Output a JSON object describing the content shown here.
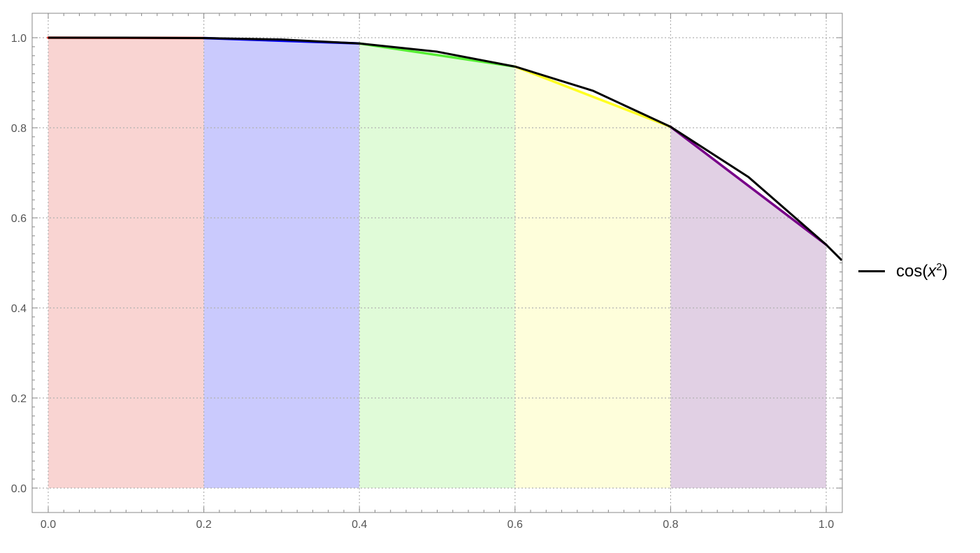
{
  "chart_data": {
    "type": "area",
    "title": "",
    "xlabel": "",
    "ylabel": "",
    "xlim": [
      0,
      1
    ],
    "ylim": [
      0,
      1
    ],
    "x_ticks": [
      "0.0",
      "0.2",
      "0.4",
      "0.6",
      "0.8",
      "1.0"
    ],
    "y_ticks": [
      "0.0",
      "0.2",
      "0.4",
      "0.6",
      "0.8",
      "1.0"
    ],
    "grid": true,
    "grid_style": "dotted",
    "legend": {
      "placement": "right",
      "entries": [
        {
          "label_base": "cos(",
          "label_var": "x",
          "label_exp": "2",
          "label_close": ")",
          "color": "#000000"
        }
      ]
    },
    "curve": {
      "name": "cos(x²)",
      "color": "#000000",
      "x": [
        0.0,
        0.1,
        0.2,
        0.3,
        0.4,
        0.5,
        0.6,
        0.7,
        0.8,
        0.9,
        1.0,
        1.02
      ],
      "y": [
        1.0,
        0.99995,
        0.9992,
        0.99595,
        0.98723,
        0.96891,
        0.9359,
        0.88233,
        0.8021,
        0.69077,
        0.5403,
        0.5058
      ]
    },
    "trapezoids": [
      {
        "x0": 0.0,
        "x1": 0.2,
        "y0": 1.0,
        "y1": 0.9992,
        "edge_color": "#e8261c",
        "fill_color": "#f9d4d2"
      },
      {
        "x0": 0.2,
        "x1": 0.4,
        "y0": 0.9992,
        "y1": 0.98723,
        "edge_color": "#0000ee",
        "fill_color": "#cacafd"
      },
      {
        "x0": 0.4,
        "x1": 0.6,
        "y0": 0.98723,
        "y1": 0.9359,
        "edge_color": "#55ee33",
        "fill_color": "#e0fbd8"
      },
      {
        "x0": 0.6,
        "x1": 0.8,
        "y0": 0.9359,
        "y1": 0.8021,
        "edge_color": "#ffff22",
        "fill_color": "#fefedb"
      },
      {
        "x0": 0.8,
        "x1": 1.0,
        "y0": 0.8021,
        "y1": 0.5403,
        "edge_color": "#770088",
        "fill_color": "#e1d0e4"
      }
    ]
  }
}
